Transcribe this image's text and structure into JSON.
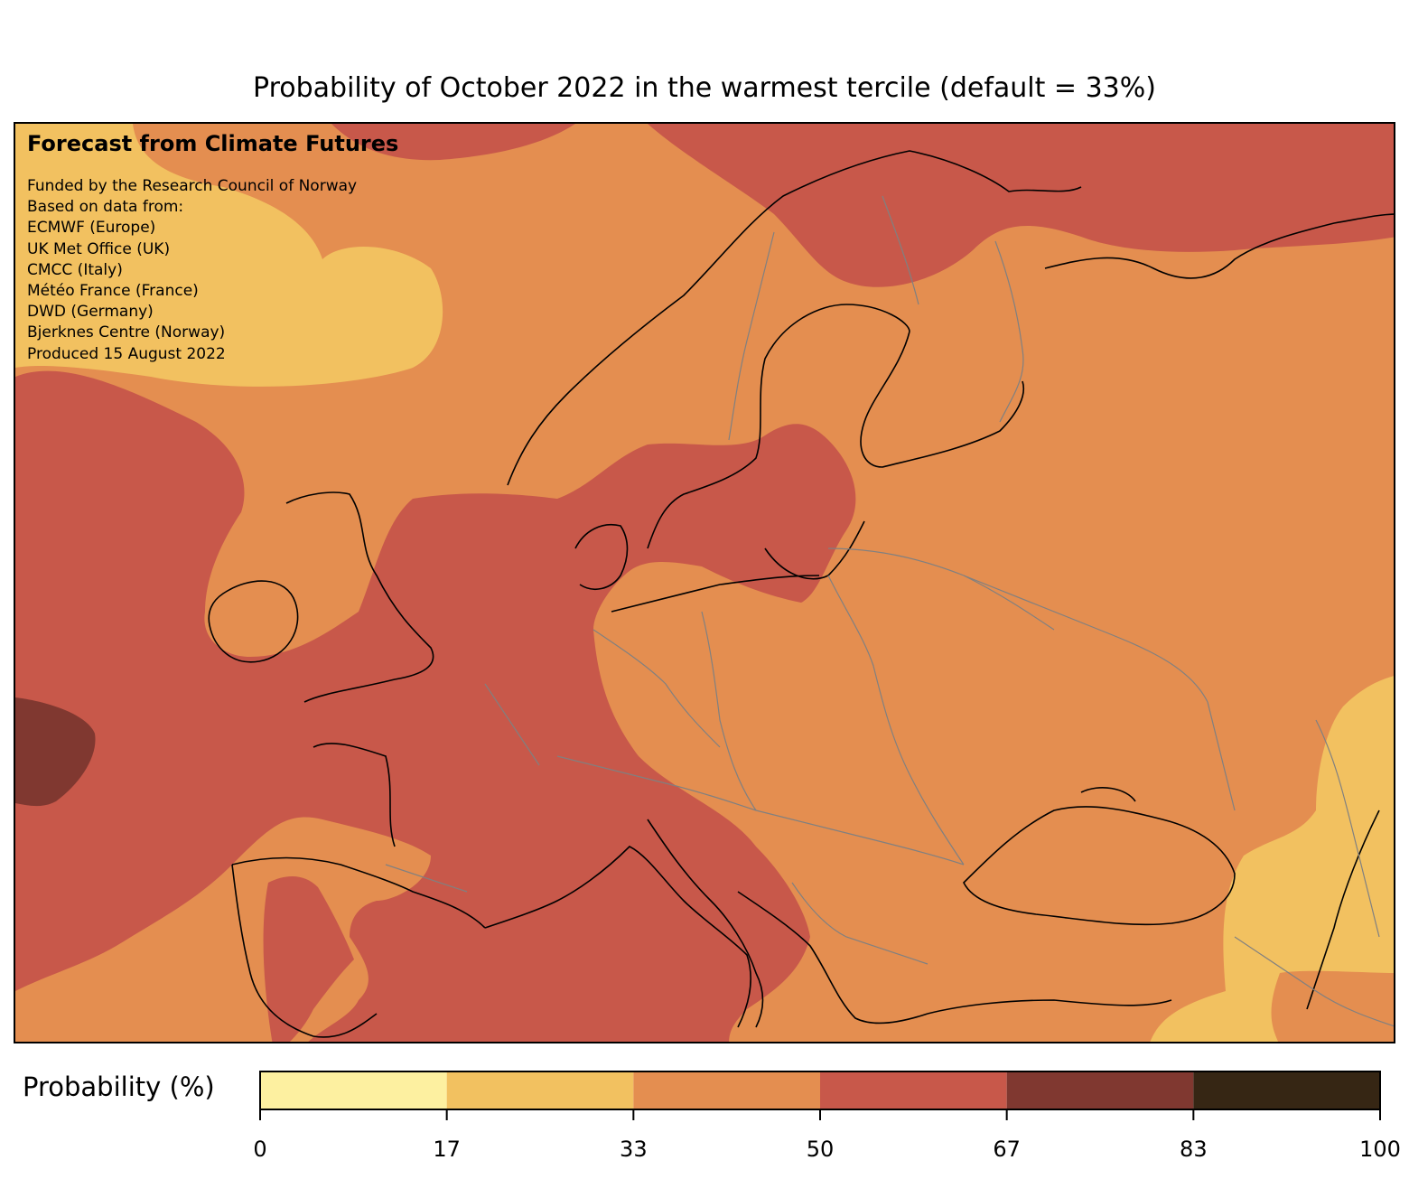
{
  "header": {
    "title": "Probability of October 2022 in the warmest tercile (default = 33%)"
  },
  "info": {
    "heading": "Forecast from Climate Futures",
    "lines": [
      "Funded by the Research Council of Norway",
      "Based on data from:",
      "ECMWF (Europe)",
      "UK Met Office (UK)",
      "CMCC (Italy)",
      "Météo France (France)",
      "DWD (Germany)",
      "Bjerknes Centre (Norway)",
      "Produced 15 August 2022"
    ]
  },
  "legend": {
    "label": "Probability (%)",
    "ticks": [
      "0",
      "17",
      "33",
      "50",
      "67",
      "83",
      "100"
    ],
    "bins": [
      {
        "range": "0-17",
        "color": "#fdf0a0"
      },
      {
        "range": "17-33",
        "color": "#f2c160"
      },
      {
        "range": "33-50",
        "color": "#e48e50"
      },
      {
        "range": "50-67",
        "color": "#c8584a"
      },
      {
        "range": "67-83",
        "color": "#803830"
      },
      {
        "range": "83-100",
        "color": "#362614"
      }
    ]
  },
  "colors": {
    "coastline": "#000000",
    "border": "#808080"
  }
}
